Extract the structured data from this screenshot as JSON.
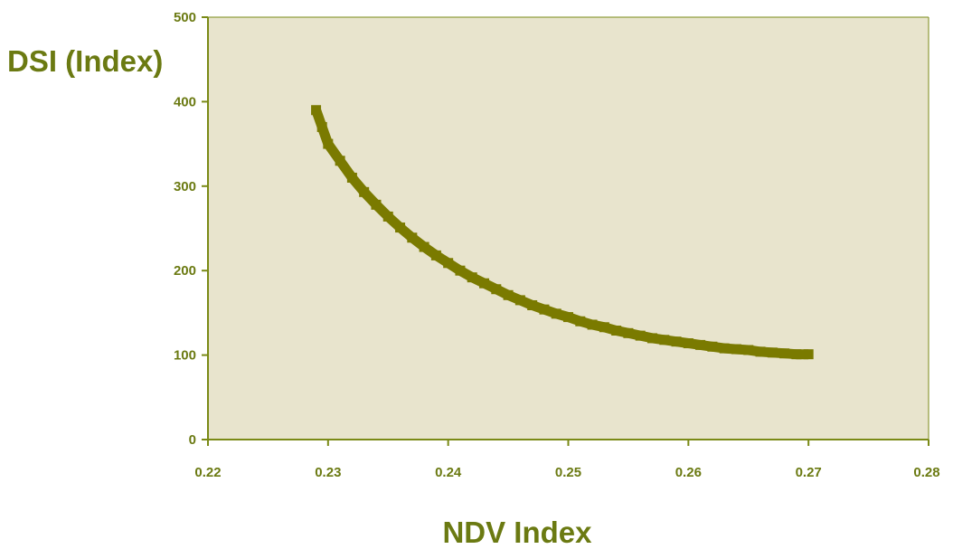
{
  "colors": {
    "plot_background": "#e8e4cd",
    "axis": "#7a8a16",
    "series": "#7a7a00",
    "text": "#6b7a12"
  },
  "chart_data": {
    "type": "line",
    "xlabel": "NDV Index",
    "ylabel": "DSI (Index)",
    "xlim": [
      0.22,
      0.28
    ],
    "ylim": [
      0,
      500
    ],
    "x_ticks": [
      "0.22",
      "0.23",
      "0.24",
      "0.25",
      "0.26",
      "0.27",
      "0.28"
    ],
    "y_ticks": [
      "0",
      "100",
      "200",
      "300",
      "400",
      "500"
    ],
    "grid": false,
    "legend": "none",
    "series": [
      {
        "x": [
          0.229,
          0.2295,
          0.23,
          0.231,
          0.232,
          0.233,
          0.234,
          0.235,
          0.236,
          0.237,
          0.238,
          0.239,
          0.24,
          0.241,
          0.242,
          0.243,
          0.244,
          0.245,
          0.246,
          0.247,
          0.248,
          0.249,
          0.25,
          0.251,
          0.252,
          0.253,
          0.254,
          0.255,
          0.256,
          0.257,
          0.258,
          0.259,
          0.26,
          0.261,
          0.262,
          0.263,
          0.264,
          0.265,
          0.266,
          0.267,
          0.268,
          0.269,
          0.27
        ],
        "y": [
          390,
          370,
          350,
          330,
          310,
          293,
          278,
          264,
          251,
          239,
          228,
          218,
          209,
          200,
          192,
          185,
          178,
          171,
          165,
          159,
          154,
          149,
          145,
          140,
          136,
          133,
          129,
          126,
          123,
          120,
          118,
          116,
          114,
          112,
          110,
          108,
          107,
          106,
          104,
          103,
          102,
          101,
          101
        ]
      }
    ]
  }
}
